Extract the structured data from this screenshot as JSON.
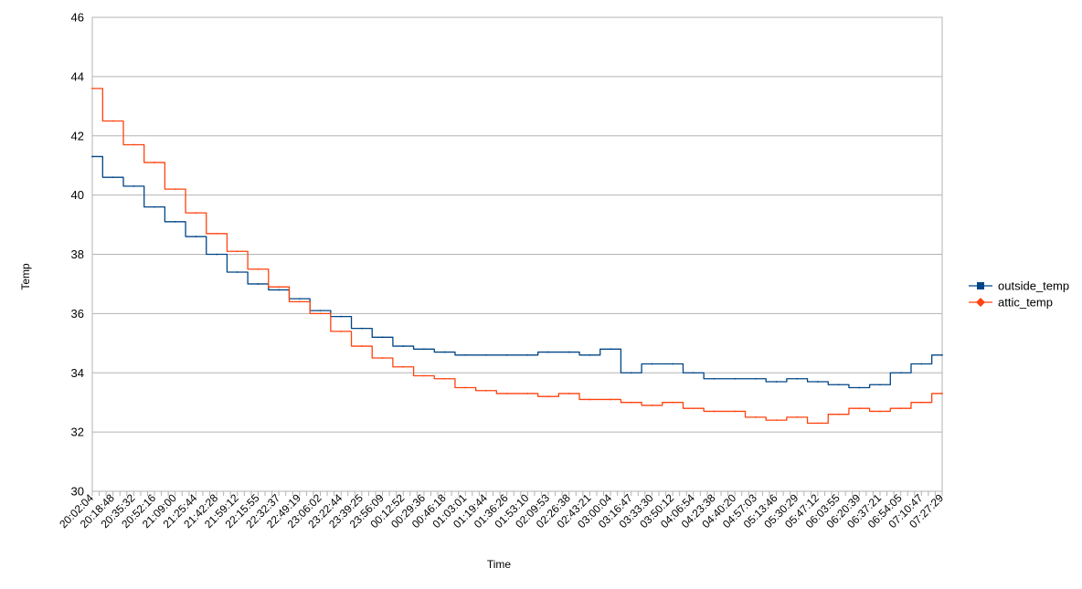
{
  "chart_data": {
    "type": "line",
    "title": "",
    "xlabel": "Time",
    "ylabel": "Temp",
    "ylim": [
      30,
      46
    ],
    "yticks": [
      30,
      32,
      34,
      36,
      38,
      40,
      42,
      44,
      46
    ],
    "grid": true,
    "legend_position": "right",
    "categories": [
      "20:02:04",
      "20:18:48",
      "20:35:32",
      "20:52:16",
      "21:09:00",
      "21:25:44",
      "21:42:28",
      "21:59:12",
      "22:15:55",
      "22:32:37",
      "22:49:19",
      "23:06:02",
      "23:22:44",
      "23:39:25",
      "23:56:09",
      "00:12:52",
      "00:29:36",
      "00:46:18",
      "01:03:01",
      "01:19:44",
      "01:36:26",
      "01:53:10",
      "02:09:53",
      "02:26:38",
      "02:43:21",
      "03:00:04",
      "03:16:47",
      "03:33:30",
      "03:50:12",
      "04:06:54",
      "04:23:38",
      "04:40:20",
      "04:57:03",
      "05:13:46",
      "05:30:29",
      "05:47:12",
      "06:03:55",
      "06:20:39",
      "06:37:21",
      "06:54:05",
      "07:10:47",
      "07:27:29"
    ],
    "series": [
      {
        "name": "outside_temp",
        "color": "#004586",
        "marker": "square",
        "values": [
          41.3,
          40.6,
          40.3,
          39.6,
          39.1,
          38.6,
          38.0,
          37.4,
          37.0,
          36.8,
          36.5,
          36.1,
          35.9,
          35.5,
          35.2,
          34.9,
          34.8,
          34.7,
          34.6,
          34.6,
          34.6,
          34.6,
          34.7,
          34.7,
          34.6,
          34.8,
          34.0,
          34.3,
          34.3,
          34.0,
          33.8,
          33.8,
          33.8,
          33.7,
          33.8,
          33.7,
          33.6,
          33.5,
          33.6,
          34.0,
          34.3,
          34.6
        ]
      },
      {
        "name": "attic_temp",
        "color": "#ff420e",
        "marker": "diamond",
        "values": [
          43.6,
          42.5,
          41.7,
          41.1,
          40.2,
          39.4,
          38.7,
          38.1,
          37.5,
          36.9,
          36.4,
          36.0,
          35.4,
          34.9,
          34.5,
          34.2,
          33.9,
          33.8,
          33.5,
          33.4,
          33.3,
          33.3,
          33.2,
          33.3,
          33.1,
          33.1,
          33.0,
          32.9,
          33.0,
          32.8,
          32.7,
          32.7,
          32.5,
          32.4,
          32.5,
          32.3,
          32.6,
          32.8,
          32.7,
          32.8,
          33.0,
          33.3
        ]
      }
    ]
  }
}
